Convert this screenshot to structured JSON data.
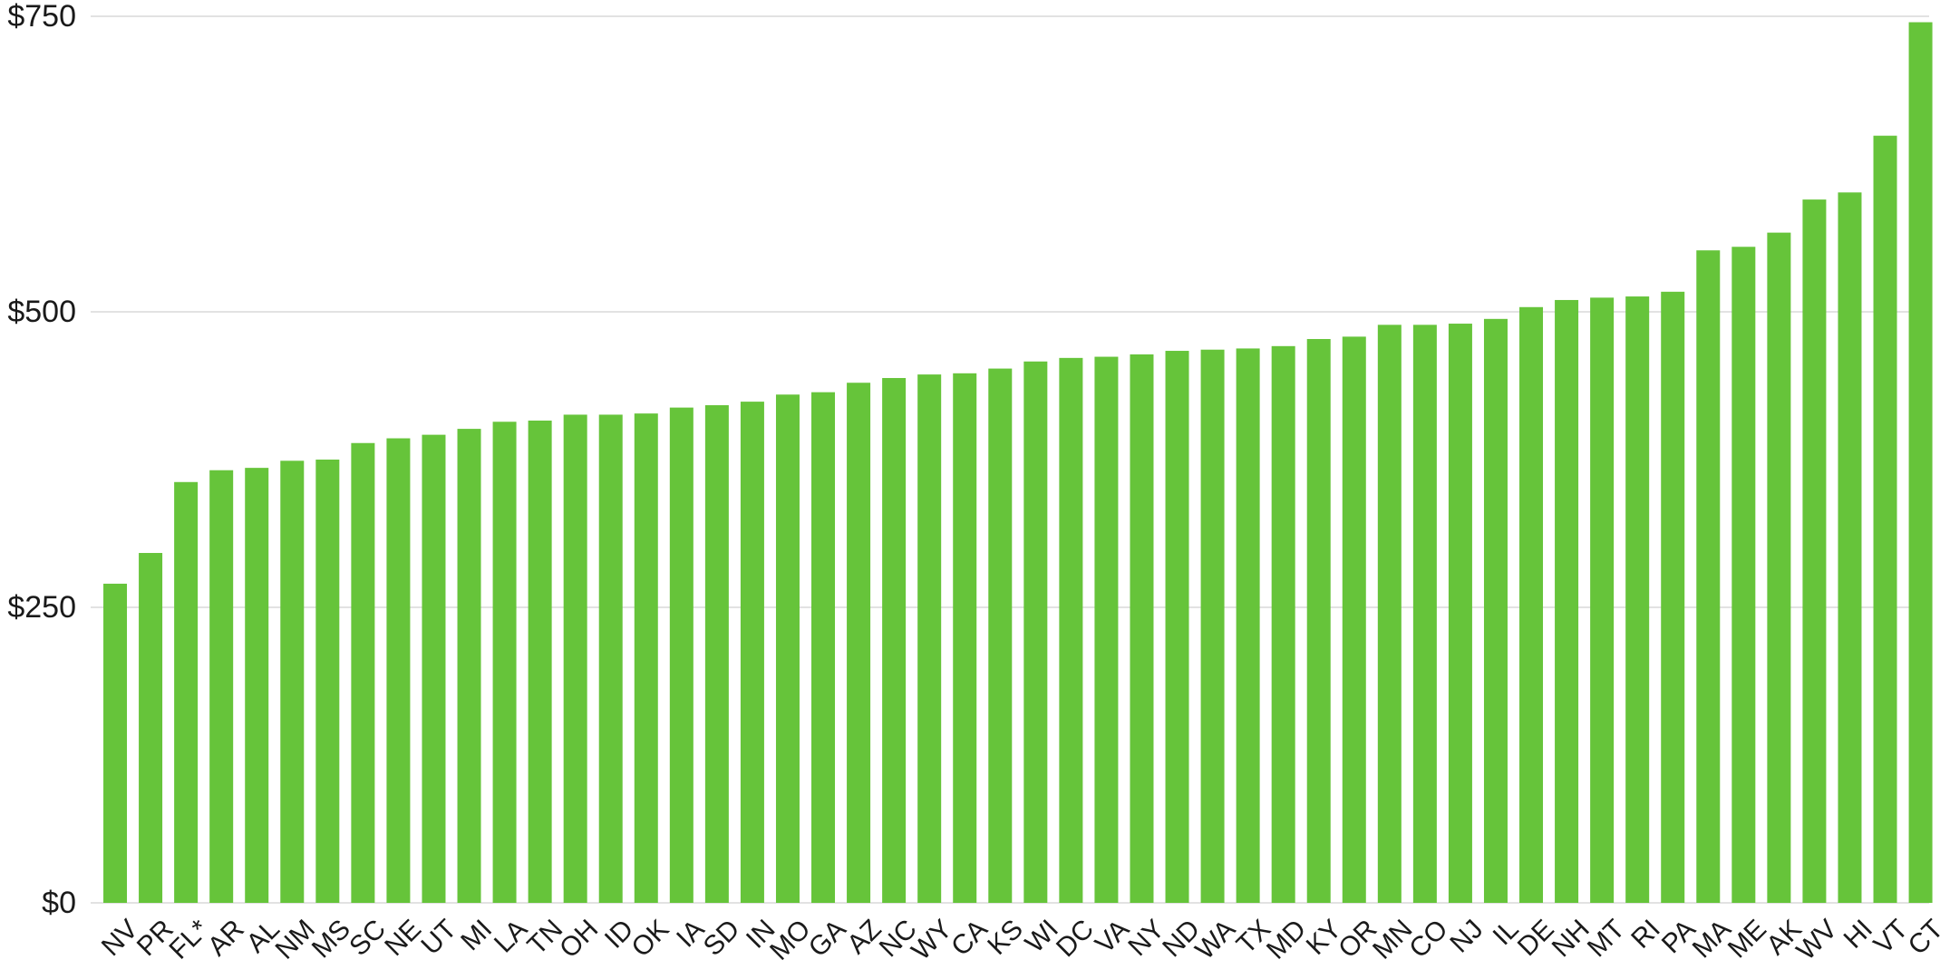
{
  "chart_data": {
    "type": "bar",
    "title": "",
    "xlabel": "",
    "ylabel": "",
    "ylim": [
      0,
      750
    ],
    "grid": true,
    "legend": "none",
    "bar_color": "#66c43a",
    "grid_color": "#d9d9d9",
    "y_ticks": [
      {
        "value": 0,
        "label": "$0"
      },
      {
        "value": 250,
        "label": "$250"
      },
      {
        "value": 500,
        "label": "$500"
      },
      {
        "value": 750,
        "label": "$750"
      }
    ],
    "categories": [
      "NV",
      "PR",
      "FL*",
      "AR",
      "AL",
      "NM",
      "MS",
      "SC",
      "NE",
      "UT",
      "MI",
      "LA",
      "TN",
      "OH",
      "ID",
      "OK",
      "IA",
      "SD",
      "IN",
      "MO",
      "GA",
      "AZ",
      "NC",
      "WY",
      "CA",
      "KS",
      "WI",
      "DC",
      "VA",
      "NY",
      "ND",
      "WA",
      "TX",
      "MD",
      "KY",
      "OR",
      "MN",
      "CO",
      "NJ",
      "IL",
      "DE",
      "NH",
      "MT",
      "RI",
      "PA",
      "MA",
      "ME",
      "AK",
      "WV",
      "HI",
      "VT",
      "CT"
    ],
    "values": [
      270,
      296,
      356,
      366,
      368,
      374,
      375,
      389,
      393,
      396,
      401,
      407,
      408,
      413,
      413,
      414,
      419,
      421,
      424,
      430,
      432,
      440,
      444,
      447,
      448,
      452,
      458,
      461,
      462,
      464,
      467,
      468,
      469,
      471,
      477,
      479,
      489,
      489,
      490,
      494,
      504,
      510,
      512,
      513,
      517,
      552,
      555,
      567,
      595,
      601,
      649,
      745
    ]
  }
}
